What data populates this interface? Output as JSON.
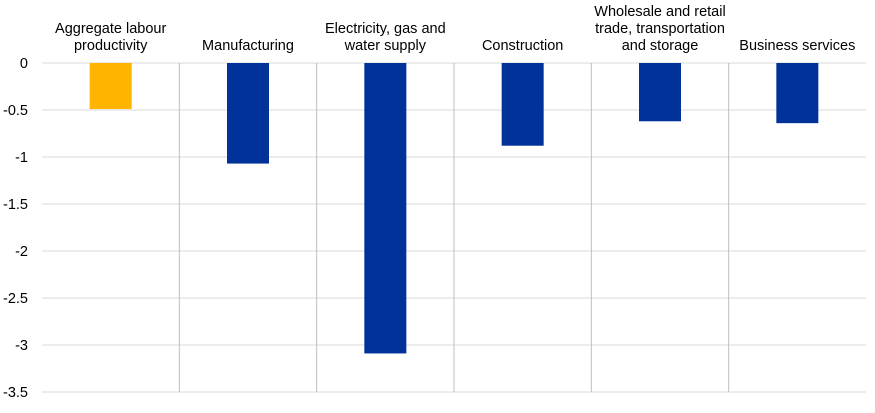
{
  "colors": {
    "highlight": "#FFB400",
    "bar": "#003299",
    "grid": "#d9d9d9",
    "separator": "#bfbfbf",
    "text": "#000000"
  },
  "chart_data": {
    "type": "bar",
    "title": "",
    "xlabel": "",
    "ylabel": "",
    "categories": [
      [
        "Aggregate labour",
        "productivity"
      ],
      [
        "Manufacturing"
      ],
      [
        "Electricity, gas and",
        "water supply"
      ],
      [
        "Construction"
      ],
      [
        "Wholesale and retail",
        "trade, transportation",
        "and storage"
      ],
      [
        "Business services"
      ]
    ],
    "values": [
      -0.49,
      -1.07,
      -3.09,
      -0.88,
      -0.62,
      -0.64
    ],
    "highlight_index": 0,
    "ylim": [
      -3.5,
      0
    ],
    "yticks": [
      0,
      -0.5,
      -1,
      -1.5,
      -2,
      -2.5,
      -3,
      -3.5
    ],
    "ytick_labels": [
      "0",
      "-0.5",
      "-1",
      "-1.5",
      "-2",
      "-2.5",
      "-3",
      "-3.5"
    ],
    "grid": true,
    "legend": "none"
  }
}
